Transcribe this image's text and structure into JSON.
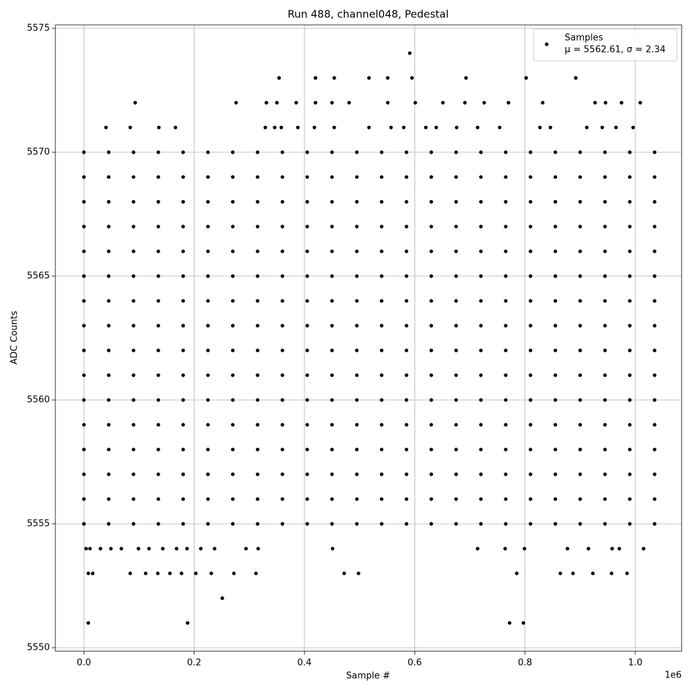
{
  "chart_data": {
    "type": "scatter",
    "title": "Run 488, channel048, Pedestal",
    "x_label": "Sample #",
    "y_label": "ADC Counts",
    "x_offset_label": "1e6",
    "xlim": [
      -51750,
      1084000
    ],
    "ylim": [
      5549.86,
      5575.14
    ],
    "xticks": [
      {
        "value": 0,
        "label": "0.0"
      },
      {
        "value": 200000,
        "label": "0.2"
      },
      {
        "value": 400000,
        "label": "0.4"
      },
      {
        "value": 600000,
        "label": "0.6"
      },
      {
        "value": 800000,
        "label": "0.8"
      },
      {
        "value": 1000000,
        "label": "1.0"
      }
    ],
    "yticks": [
      5550,
      5555,
      5560,
      5565,
      5570,
      5575
    ],
    "grid": true,
    "legend": "upper right",
    "legend_stats": "μ = 5562.61, σ = 2.34",
    "series": [
      {
        "name": "Samples",
        "color": "#000000",
        "x": [
          591000,
          354000,
          420000,
          454000,
          517000,
          551000,
          595000,
          693000,
          802000,
          892000,
          93000,
          276000,
          331000,
          350000,
          385000,
          420000,
          450000,
          481000,
          551000,
          601000,
          651000,
          691000,
          726000,
          770000,
          832000,
          927000,
          946000,
          975000,
          1009000,
          40000,
          84000,
          136000,
          166000,
          329000,
          346000,
          358000,
          388000,
          418000,
          454000,
          517000,
          557000,
          580000,
          620000,
          639000,
          676000,
          714000,
          754000,
          827000,
          846000,
          912000,
          940000,
          965000,
          996000,
          0,
          45000,
          90000,
          135000,
          180000,
          225000,
          270000,
          315000,
          360000,
          405000,
          450000,
          495000,
          540000,
          585000,
          630000,
          675000,
          720000,
          765000,
          810000,
          855000,
          900000,
          945000,
          990000,
          1035000,
          0,
          45000,
          90000,
          135000,
          180000,
          225000,
          270000,
          315000,
          360000,
          405000,
          450000,
          495000,
          540000,
          585000,
          630000,
          675000,
          720000,
          765000,
          810000,
          855000,
          900000,
          945000,
          990000,
          1035000,
          0,
          45000,
          90000,
          135000,
          180000,
          225000,
          270000,
          315000,
          360000,
          405000,
          450000,
          495000,
          540000,
          585000,
          630000,
          675000,
          720000,
          765000,
          810000,
          855000,
          900000,
          945000,
          990000,
          1035000,
          0,
          45000,
          90000,
          135000,
          180000,
          225000,
          270000,
          315000,
          360000,
          405000,
          450000,
          495000,
          540000,
          585000,
          630000,
          675000,
          720000,
          765000,
          810000,
          855000,
          900000,
          945000,
          990000,
          1035000,
          0,
          45000,
          90000,
          135000,
          180000,
          225000,
          270000,
          315000,
          360000,
          405000,
          450000,
          495000,
          540000,
          585000,
          630000,
          675000,
          720000,
          765000,
          810000,
          855000,
          900000,
          945000,
          990000,
          1035000,
          0,
          45000,
          90000,
          135000,
          180000,
          225000,
          270000,
          315000,
          360000,
          405000,
          450000,
          495000,
          540000,
          585000,
          630000,
          675000,
          720000,
          765000,
          810000,
          855000,
          900000,
          945000,
          990000,
          1035000,
          0,
          45000,
          90000,
          135000,
          180000,
          225000,
          270000,
          315000,
          360000,
          405000,
          450000,
          495000,
          540000,
          585000,
          630000,
          675000,
          720000,
          765000,
          810000,
          855000,
          900000,
          945000,
          990000,
          1035000,
          0,
          45000,
          90000,
          135000,
          180000,
          225000,
          270000,
          315000,
          360000,
          405000,
          450000,
          495000,
          540000,
          585000,
          630000,
          675000,
          720000,
          765000,
          810000,
          855000,
          900000,
          945000,
          990000,
          1035000,
          0,
          45000,
          90000,
          135000,
          180000,
          225000,
          270000,
          315000,
          360000,
          405000,
          450000,
          495000,
          540000,
          585000,
          630000,
          675000,
          720000,
          765000,
          810000,
          855000,
          900000,
          945000,
          990000,
          1035000,
          0,
          45000,
          90000,
          135000,
          180000,
          225000,
          270000,
          315000,
          360000,
          405000,
          450000,
          495000,
          540000,
          585000,
          630000,
          675000,
          720000,
          765000,
          810000,
          855000,
          900000,
          945000,
          990000,
          1035000,
          0,
          45000,
          90000,
          135000,
          180000,
          225000,
          270000,
          315000,
          360000,
          405000,
          450000,
          495000,
          540000,
          585000,
          630000,
          675000,
          720000,
          765000,
          810000,
          855000,
          900000,
          945000,
          990000,
          1035000,
          0,
          45000,
          90000,
          135000,
          180000,
          225000,
          270000,
          315000,
          360000,
          405000,
          450000,
          495000,
          540000,
          585000,
          630000,
          675000,
          720000,
          765000,
          810000,
          855000,
          900000,
          945000,
          990000,
          1035000,
          0,
          45000,
          90000,
          135000,
          180000,
          225000,
          270000,
          315000,
          360000,
          405000,
          450000,
          495000,
          540000,
          585000,
          630000,
          675000,
          720000,
          765000,
          810000,
          855000,
          900000,
          945000,
          990000,
          1035000,
          0,
          45000,
          90000,
          135000,
          180000,
          225000,
          270000,
          315000,
          360000,
          405000,
          450000,
          495000,
          540000,
          585000,
          630000,
          675000,
          720000,
          765000,
          810000,
          855000,
          900000,
          945000,
          990000,
          1035000,
          0,
          45000,
          90000,
          135000,
          180000,
          225000,
          270000,
          315000,
          360000,
          405000,
          450000,
          495000,
          540000,
          585000,
          630000,
          675000,
          720000,
          765000,
          810000,
          855000,
          900000,
          945000,
          990000,
          1035000,
          0,
          45000,
          90000,
          135000,
          180000,
          225000,
          270000,
          315000,
          360000,
          405000,
          450000,
          495000,
          540000,
          585000,
          630000,
          675000,
          720000,
          765000,
          810000,
          855000,
          900000,
          945000,
          990000,
          1035000,
          4000,
          11000,
          30000,
          49000,
          68000,
          99000,
          118000,
          143000,
          168000,
          187000,
          212000,
          237000,
          294000,
          316000,
          451000,
          714000,
          764000,
          799000,
          877000,
          915000,
          958000,
          971000,
          1015000,
          8000,
          16000,
          84000,
          112000,
          134000,
          156000,
          177000,
          203000,
          231000,
          272000,
          312000,
          472000,
          498000,
          785000,
          864000,
          887000,
          923000,
          957000,
          985000,
          251000,
          8000,
          188000,
          772000,
          797000
        ],
        "values": [
          5574,
          5573,
          5573,
          5573,
          5573,
          5573,
          5573,
          5573,
          5573,
          5573,
          5572,
          5572,
          5572,
          5572,
          5572,
          5572,
          5572,
          5572,
          5572,
          5572,
          5572,
          5572,
          5572,
          5572,
          5572,
          5572,
          5572,
          5572,
          5572,
          5571,
          5571,
          5571,
          5571,
          5571,
          5571,
          5571,
          5571,
          5571,
          5571,
          5571,
          5571,
          5571,
          5571,
          5571,
          5571,
          5571,
          5571,
          5571,
          5571,
          5571,
          5571,
          5571,
          5571,
          5570,
          5570,
          5570,
          5570,
          5570,
          5570,
          5570,
          5570,
          5570,
          5570,
          5570,
          5570,
          5570,
          5570,
          5570,
          5570,
          5570,
          5570,
          5570,
          5570,
          5570,
          5570,
          5570,
          5570,
          5569,
          5569,
          5569,
          5569,
          5569,
          5569,
          5569,
          5569,
          5569,
          5569,
          5569,
          5569,
          5569,
          5569,
          5569,
          5569,
          5569,
          5569,
          5569,
          5569,
          5569,
          5569,
          5569,
          5569,
          5568,
          5568,
          5568,
          5568,
          5568,
          5568,
          5568,
          5568,
          5568,
          5568,
          5568,
          5568,
          5568,
          5568,
          5568,
          5568,
          5568,
          5568,
          5568,
          5568,
          5568,
          5568,
          5568,
          5568,
          5567,
          5567,
          5567,
          5567,
          5567,
          5567,
          5567,
          5567,
          5567,
          5567,
          5567,
          5567,
          5567,
          5567,
          5567,
          5567,
          5567,
          5567,
          5567,
          5567,
          5567,
          5567,
          5567,
          5567,
          5566,
          5566,
          5566,
          5566,
          5566,
          5566,
          5566,
          5566,
          5566,
          5566,
          5566,
          5566,
          5566,
          5566,
          5566,
          5566,
          5566,
          5566,
          5566,
          5566,
          5566,
          5566,
          5566,
          5566,
          5565,
          5565,
          5565,
          5565,
          5565,
          5565,
          5565,
          5565,
          5565,
          5565,
          5565,
          5565,
          5565,
          5565,
          5565,
          5565,
          5565,
          5565,
          5565,
          5565,
          5565,
          5565,
          5565,
          5565,
          5564,
          5564,
          5564,
          5564,
          5564,
          5564,
          5564,
          5564,
          5564,
          5564,
          5564,
          5564,
          5564,
          5564,
          5564,
          5564,
          5564,
          5564,
          5564,
          5564,
          5564,
          5564,
          5564,
          5564,
          5563,
          5563,
          5563,
          5563,
          5563,
          5563,
          5563,
          5563,
          5563,
          5563,
          5563,
          5563,
          5563,
          5563,
          5563,
          5563,
          5563,
          5563,
          5563,
          5563,
          5563,
          5563,
          5563,
          5563,
          5562,
          5562,
          5562,
          5562,
          5562,
          5562,
          5562,
          5562,
          5562,
          5562,
          5562,
          5562,
          5562,
          5562,
          5562,
          5562,
          5562,
          5562,
          5562,
          5562,
          5562,
          5562,
          5562,
          5562,
          5561,
          5561,
          5561,
          5561,
          5561,
          5561,
          5561,
          5561,
          5561,
          5561,
          5561,
          5561,
          5561,
          5561,
          5561,
          5561,
          5561,
          5561,
          5561,
          5561,
          5561,
          5561,
          5561,
          5561,
          5560,
          5560,
          5560,
          5560,
          5560,
          5560,
          5560,
          5560,
          5560,
          5560,
          5560,
          5560,
          5560,
          5560,
          5560,
          5560,
          5560,
          5560,
          5560,
          5560,
          5560,
          5560,
          5560,
          5560,
          5559,
          5559,
          5559,
          5559,
          5559,
          5559,
          5559,
          5559,
          5559,
          5559,
          5559,
          5559,
          5559,
          5559,
          5559,
          5559,
          5559,
          5559,
          5559,
          5559,
          5559,
          5559,
          5559,
          5559,
          5558,
          5558,
          5558,
          5558,
          5558,
          5558,
          5558,
          5558,
          5558,
          5558,
          5558,
          5558,
          5558,
          5558,
          5558,
          5558,
          5558,
          5558,
          5558,
          5558,
          5558,
          5558,
          5558,
          5558,
          5557,
          5557,
          5557,
          5557,
          5557,
          5557,
          5557,
          5557,
          5557,
          5557,
          5557,
          5557,
          5557,
          5557,
          5557,
          5557,
          5557,
          5557,
          5557,
          5557,
          5557,
          5557,
          5557,
          5557,
          5556,
          5556,
          5556,
          5556,
          5556,
          5556,
          5556,
          5556,
          5556,
          5556,
          5556,
          5556,
          5556,
          5556,
          5556,
          5556,
          5556,
          5556,
          5556,
          5556,
          5556,
          5556,
          5556,
          5556,
          5555,
          5555,
          5555,
          5555,
          5555,
          5555,
          5555,
          5555,
          5555,
          5555,
          5555,
          5555,
          5555,
          5555,
          5555,
          5555,
          5555,
          5555,
          5555,
          5555,
          5555,
          5555,
          5555,
          5555,
          5554,
          5554,
          5554,
          5554,
          5554,
          5554,
          5554,
          5554,
          5554,
          5554,
          5554,
          5554,
          5554,
          5554,
          5554,
          5554,
          5554,
          5554,
          5554,
          5554,
          5554,
          5554,
          5554,
          5553,
          5553,
          5553,
          5553,
          5553,
          5553,
          5553,
          5553,
          5553,
          5553,
          5553,
          5553,
          5553,
          5553,
          5553,
          5553,
          5553,
          5553,
          5553,
          5552,
          5551,
          5551,
          5551,
          5551
        ]
      }
    ]
  }
}
